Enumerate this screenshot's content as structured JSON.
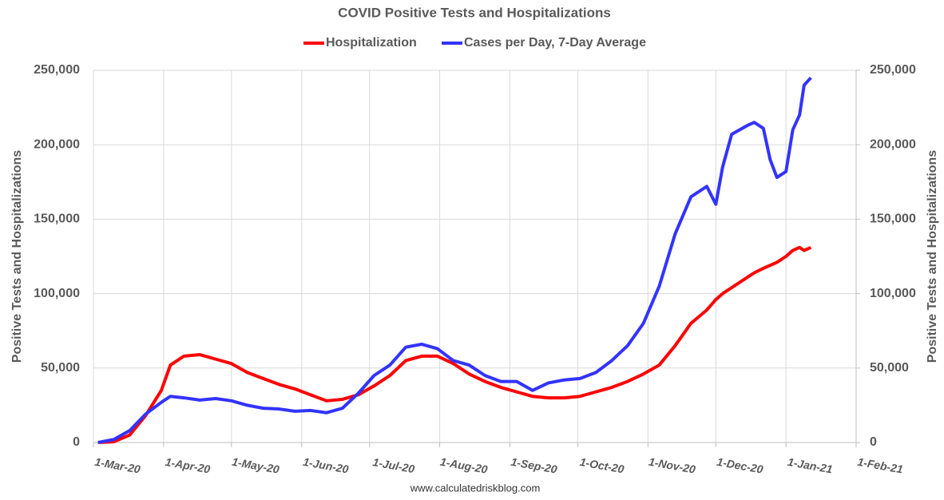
{
  "chart_data": {
    "type": "line",
    "title": "COVID Positive Tests and Hospitalizations",
    "y_label": "Positive Tests and Hospitalizations",
    "y2_label": "Positive Tests and Hospitalizations",
    "source": "www.calculatedriskblog.com",
    "legend": "top",
    "grid": true,
    "x": [
      "2020-03-03",
      "2020-03-10",
      "2020-03-17",
      "2020-03-24",
      "2020-03-31",
      "2020-04-04",
      "2020-04-10",
      "2020-04-17",
      "2020-04-24",
      "2020-05-01",
      "2020-05-08",
      "2020-05-15",
      "2020-05-22",
      "2020-05-29",
      "2020-06-05",
      "2020-06-12",
      "2020-06-19",
      "2020-06-26",
      "2020-07-03",
      "2020-07-10",
      "2020-07-17",
      "2020-07-24",
      "2020-07-31",
      "2020-08-07",
      "2020-08-14",
      "2020-08-21",
      "2020-08-28",
      "2020-09-04",
      "2020-09-11",
      "2020-09-18",
      "2020-09-25",
      "2020-10-02",
      "2020-10-09",
      "2020-10-16",
      "2020-10-23",
      "2020-10-30",
      "2020-11-06",
      "2020-11-13",
      "2020-11-20",
      "2020-11-27",
      "2020-12-01",
      "2020-12-04",
      "2020-12-08",
      "2020-12-15",
      "2020-12-18",
      "2020-12-22",
      "2020-12-25",
      "2020-12-28",
      "2021-01-01",
      "2021-01-04",
      "2021-01-07",
      "2021-01-09",
      "2021-01-12"
    ],
    "series": [
      {
        "name": "Hospitalization",
        "color": "#ff0000",
        "values": [
          0,
          500,
          5000,
          18000,
          35000,
          52000,
          58000,
          59000,
          56000,
          53000,
          47000,
          43000,
          39000,
          36000,
          32000,
          28000,
          29000,
          32000,
          38000,
          45000,
          55000,
          58000,
          58000,
          53000,
          46000,
          41000,
          37000,
          34000,
          31000,
          30000,
          30000,
          31000,
          34000,
          37000,
          41000,
          46000,
          52000,
          65000,
          80000,
          89000,
          96000,
          100000,
          104000,
          111000,
          114000,
          117000,
          119000,
          121000,
          125000,
          129000,
          131000,
          129000,
          131000
        ]
      },
      {
        "name": "Cases per Day, 7-Day Average",
        "color": "#3333ff",
        "values": [
          0,
          2000,
          8000,
          19000,
          27000,
          31000,
          30000,
          28500,
          29500,
          28000,
          25000,
          23000,
          22500,
          21000,
          21500,
          20000,
          23000,
          33000,
          45000,
          52000,
          64000,
          66000,
          63000,
          55000,
          52000,
          45000,
          41000,
          41000,
          35000,
          40000,
          42000,
          43000,
          47000,
          55000,
          65000,
          80000,
          105000,
          140000,
          165000,
          172000,
          160000,
          185000,
          207000,
          213000,
          215000,
          211000,
          190000,
          178000,
          182000,
          210000,
          220000,
          240000,
          245000
        ]
      }
    ],
    "xlim": [
      "2020-03-01",
      "2021-02-01"
    ],
    "xticks": [
      {
        "value": "2020-03-01",
        "label": "1-Mar-20"
      },
      {
        "value": "2020-04-01",
        "label": "1-Apr-20"
      },
      {
        "value": "2020-05-01",
        "label": "1-May-20"
      },
      {
        "value": "2020-06-01",
        "label": "1-Jun-20"
      },
      {
        "value": "2020-07-01",
        "label": "1-Jul-20"
      },
      {
        "value": "2020-08-01",
        "label": "1-Aug-20"
      },
      {
        "value": "2020-09-01",
        "label": "1-Sep-20"
      },
      {
        "value": "2020-10-01",
        "label": "1-Oct-20"
      },
      {
        "value": "2020-11-01",
        "label": "1-Nov-20"
      },
      {
        "value": "2020-12-01",
        "label": "1-Dec-20"
      },
      {
        "value": "2021-01-01",
        "label": "1-Jan-21"
      },
      {
        "value": "2021-02-01",
        "label": "1-Feb-21"
      }
    ],
    "ylim": [
      0,
      250000
    ],
    "yticks": [
      0,
      {
        "value": 50000,
        "label": "50,000"
      },
      {
        "value": 100000,
        "label": "100,000"
      },
      {
        "value": 150000,
        "label": "150,000"
      },
      {
        "value": 200000,
        "label": "200,000"
      },
      {
        "value": 250000,
        "label": "250,000"
      }
    ],
    "y2lim": [
      0,
      250000
    ],
    "y2ticks": [
      0,
      {
        "value": 50000,
        "label": "50,000"
      },
      {
        "value": 100000,
        "label": "100,000"
      },
      {
        "value": 150000,
        "label": "150,000"
      },
      {
        "value": 200000,
        "label": "200,000"
      },
      {
        "value": 250000,
        "label": "250,000"
      }
    ]
  }
}
